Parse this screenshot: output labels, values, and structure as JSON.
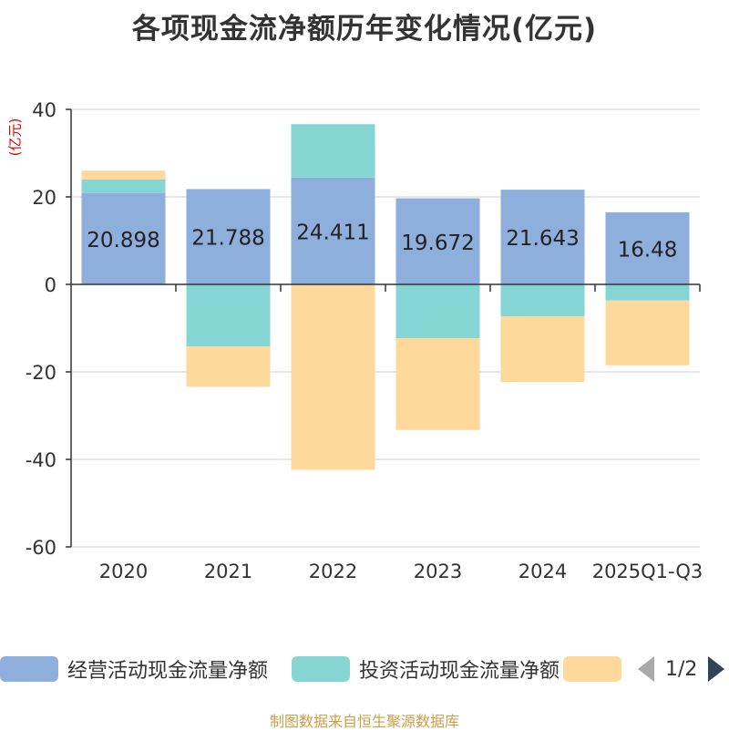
{
  "chart_data": {
    "type": "bar",
    "stacked": true,
    "title": "各项现金流净额历年变化情况(亿元)",
    "ylabel": "(亿元)",
    "xlabel": "",
    "categories": [
      "2020",
      "2021",
      "2022",
      "2023",
      "2024",
      "2025Q1-Q3"
    ],
    "ylim": [
      -60,
      40
    ],
    "yticks": [
      40,
      20,
      0,
      -20,
      -40,
      -60
    ],
    "grid": true,
    "series": [
      {
        "name": "经营活动现金流量净额",
        "color": "#8eaedb",
        "values": [
          20.898,
          21.788,
          24.411,
          19.672,
          21.643,
          16.48
        ],
        "labels": [
          "20.898",
          "21.788",
          "24.411",
          "19.672",
          "21.643",
          "16.48"
        ]
      },
      {
        "name": "投资活动现金流量净额",
        "color": "#86d5d5",
        "values": [
          3.1,
          -14.2,
          12.2,
          -12.3,
          -7.3,
          -3.7
        ]
      },
      {
        "name": "",
        "color": "#fed99b",
        "values": [
          2.0,
          -9.2,
          -42.4,
          -21.0,
          -15.0,
          -14.8
        ]
      }
    ]
  },
  "legend": {
    "items": [
      {
        "label": "经营活动现金流量净额",
        "color": "#8eaedb"
      },
      {
        "label": "投资活动现金流量净额",
        "color": "#86d5d5"
      },
      {
        "label": "",
        "color": "#fed99b"
      }
    ],
    "page": "1/2"
  },
  "source": "制图数据来自恒生聚源数据库"
}
